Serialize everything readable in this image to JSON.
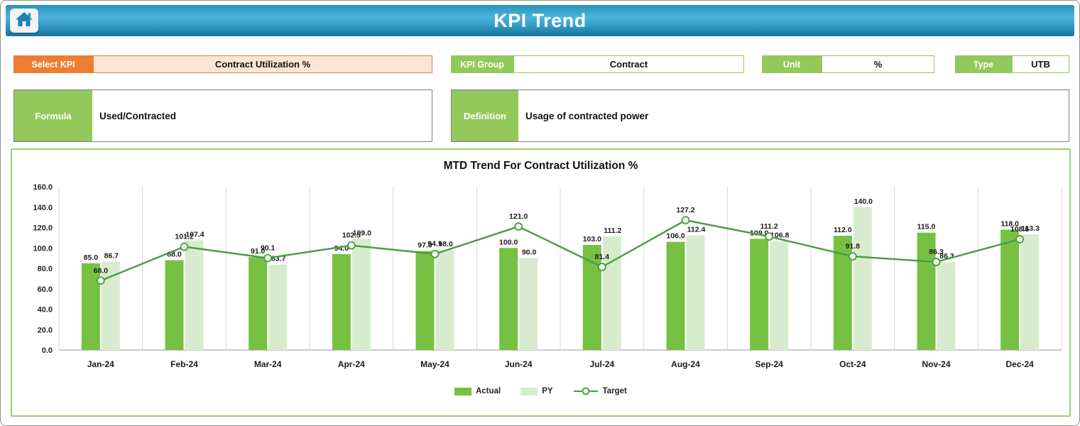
{
  "header": {
    "title": "KPI Trend",
    "home_icon": "home-icon"
  },
  "controls": {
    "select_kpi": {
      "label": "Select KPI",
      "value": "Contract Utilization %"
    },
    "kpi_group": {
      "label": "KPI Group",
      "value": "Contract"
    },
    "unit": {
      "label": "Unit",
      "value": "%"
    },
    "type": {
      "label": "Type",
      "value": "UTB"
    }
  },
  "formula": {
    "label": "Formula",
    "value": "Used/Contracted"
  },
  "definition": {
    "label": "Definition",
    "value": "Usage of contracted power"
  },
  "colors": {
    "header_teal": "#2A93BA",
    "accent_orange": "#ED7D31",
    "accent_orange_light": "#FBE5D6",
    "accent_green": "#93C95B",
    "bar_actual": "#76C142",
    "bar_py": "#D7ECCF",
    "line_target": "#4C9B44"
  },
  "chart_data": {
    "type": "combo-bar-line",
    "title": "MTD Trend For Contract Utilization %",
    "categories": [
      "Jan-24",
      "Feb-24",
      "Mar-24",
      "Apr-24",
      "May-24",
      "Jun-24",
      "Jul-24",
      "Aug-24",
      "Sep-24",
      "Oct-24",
      "Nov-24",
      "Dec-24"
    ],
    "series": [
      {
        "name": "Actual",
        "kind": "bar",
        "color": "#76C142",
        "values": [
          85.0,
          88.0,
          91.0,
          94.0,
          97.0,
          100.0,
          103.0,
          106.0,
          109.0,
          112.0,
          115.0,
          118.0
        ]
      },
      {
        "name": "PY",
        "kind": "bar",
        "color": "#D7ECCF",
        "values": [
          86.7,
          107.4,
          83.7,
          109.0,
          98.0,
          90.0,
          111.2,
          112.4,
          106.8,
          140.0,
          86.3,
          113.3
        ]
      },
      {
        "name": "Target",
        "kind": "line",
        "color": "#4C9B44",
        "values": [
          68.0,
          101.2,
          90.1,
          102.5,
          94.1,
          121.0,
          81.4,
          127.2,
          111.2,
          91.8,
          86.3,
          108.6
        ]
      }
    ],
    "ylim": [
      0,
      160
    ],
    "ytick_step": 20,
    "grid": "vertical",
    "legend_position": "bottom"
  }
}
